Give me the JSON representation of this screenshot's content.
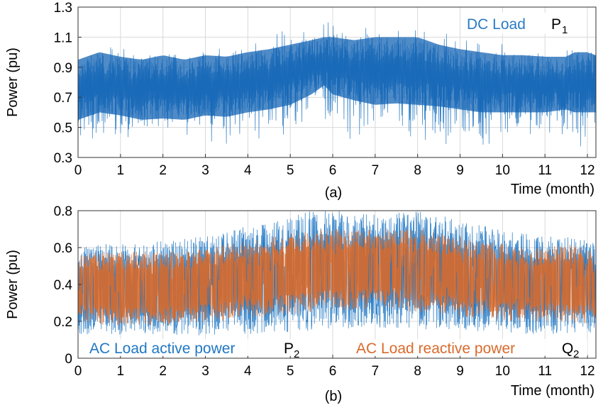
{
  "chart_data": [
    {
      "type": "line",
      "panel_label": "(a)",
      "title": "",
      "xlabel": "Time (month)",
      "ylabel": "Power (pu)",
      "xlim": [
        0,
        12.2
      ],
      "ylim": [
        0.3,
        1.3
      ],
      "xticks": [
        0,
        1,
        2,
        3,
        4,
        5,
        6,
        7,
        8,
        9,
        10,
        11,
        12
      ],
      "yticks": [
        0.3,
        0.5,
        0.7,
        0.9,
        1.1,
        1.3
      ],
      "grid": true,
      "series": [
        {
          "name": "DC Load",
          "symbol": "P",
          "subscript": "1",
          "color": "#2a7bc4",
          "dense_color": "#1464b4",
          "envelope": {
            "x": [
              0,
              0.5,
              1,
              1.5,
              2,
              2.5,
              3,
              3.5,
              4,
              4.5,
              5,
              5.5,
              5.8,
              6,
              6.5,
              7,
              7.5,
              8,
              8.5,
              9,
              9.5,
              10,
              10.5,
              11,
              11.5,
              11.7,
              12,
              12.2
            ],
            "max": [
              0.98,
              1.12,
              1.05,
              1.0,
              1.05,
              1.02,
              1.08,
              1.05,
              1.12,
              1.12,
              1.17,
              1.2,
              1.2,
              1.2,
              1.2,
              1.2,
              1.2,
              1.2,
              1.15,
              1.12,
              1.1,
              1.08,
              1.05,
              1.05,
              1.08,
              1.12,
              1.1,
              1.05
            ],
            "min": [
              0.4,
              0.38,
              0.4,
              0.36,
              0.4,
              0.36,
              0.38,
              0.37,
              0.38,
              0.38,
              0.4,
              0.45,
              0.5,
              0.42,
              0.4,
              0.36,
              0.36,
              0.35,
              0.36,
              0.38,
              0.36,
              0.38,
              0.36,
              0.35,
              0.38,
              0.36,
              0.36,
              0.4
            ],
            "band_hi": [
              0.95,
              1.0,
              0.97,
              0.95,
              0.98,
              0.95,
              0.98,
              0.97,
              1.0,
              1.02,
              1.05,
              1.08,
              1.1,
              1.1,
              1.08,
              1.1,
              1.1,
              1.1,
              1.05,
              1.02,
              1.0,
              0.98,
              0.98,
              0.97,
              0.97,
              1.0,
              1.0,
              0.98
            ],
            "band_lo": [
              0.55,
              0.6,
              0.58,
              0.55,
              0.56,
              0.55,
              0.58,
              0.57,
              0.6,
              0.62,
              0.65,
              0.72,
              0.78,
              0.72,
              0.68,
              0.65,
              0.66,
              0.65,
              0.64,
              0.62,
              0.6,
              0.6,
              0.6,
              0.6,
              0.62,
              0.6,
              0.6,
              0.6
            ]
          }
        }
      ]
    },
    {
      "type": "line",
      "panel_label": "(b)",
      "title": "",
      "xlabel": "Time (month)",
      "ylabel": "Power (pu)",
      "xlim": [
        0,
        12.2
      ],
      "ylim": [
        0,
        0.8
      ],
      "xticks": [
        0,
        1,
        2,
        3,
        4,
        5,
        6,
        7,
        8,
        9,
        10,
        11,
        12
      ],
      "yticks": [
        0,
        0.2,
        0.4,
        0.6,
        0.8
      ],
      "grid": true,
      "series": [
        {
          "name": "AC Load active power",
          "symbol": "P",
          "subscript": "2",
          "color": "#1f77c4",
          "envelope": {
            "x": [
              0,
              0.5,
              1,
              1.5,
              2,
              2.5,
              3,
              3.5,
              4,
              4.5,
              5,
              5.5,
              6,
              6.5,
              7,
              7.5,
              8,
              8.5,
              9,
              9.5,
              10,
              10.5,
              11,
              11.5,
              12,
              12.2
            ],
            "max": [
              0.6,
              0.62,
              0.62,
              0.62,
              0.65,
              0.65,
              0.66,
              0.68,
              0.72,
              0.74,
              0.78,
              0.8,
              0.8,
              0.8,
              0.8,
              0.8,
              0.8,
              0.78,
              0.74,
              0.72,
              0.7,
              0.68,
              0.66,
              0.66,
              0.64,
              0.62
            ],
            "min": [
              0.12,
              0.13,
              0.12,
              0.13,
              0.12,
              0.13,
              0.12,
              0.13,
              0.13,
              0.14,
              0.14,
              0.15,
              0.16,
              0.16,
              0.16,
              0.16,
              0.16,
              0.15,
              0.15,
              0.14,
              0.14,
              0.13,
              0.13,
              0.13,
              0.12,
              0.12
            ]
          }
        },
        {
          "name": "AC Load reactive power",
          "symbol": "Q",
          "subscript": "2",
          "color": "#d96a2b",
          "envelope": {
            "x": [
              0,
              0.5,
              1,
              1.5,
              2,
              2.5,
              3,
              3.5,
              4,
              4.5,
              5,
              5.5,
              6,
              6.5,
              7,
              7.5,
              8,
              8.5,
              9,
              9.5,
              10,
              10.5,
              11,
              11.5,
              12,
              12.2
            ],
            "max": [
              0.58,
              0.58,
              0.58,
              0.58,
              0.58,
              0.58,
              0.6,
              0.62,
              0.64,
              0.66,
              0.68,
              0.7,
              0.7,
              0.7,
              0.7,
              0.7,
              0.7,
              0.68,
              0.66,
              0.64,
              0.62,
              0.6,
              0.6,
              0.62,
              0.6,
              0.58
            ],
            "min": [
              0.2,
              0.18,
              0.18,
              0.18,
              0.18,
              0.18,
              0.2,
              0.2,
              0.22,
              0.22,
              0.24,
              0.25,
              0.26,
              0.26,
              0.26,
              0.26,
              0.25,
              0.24,
              0.22,
              0.22,
              0.2,
              0.2,
              0.2,
              0.2,
              0.18,
              0.18
            ]
          }
        }
      ]
    }
  ]
}
